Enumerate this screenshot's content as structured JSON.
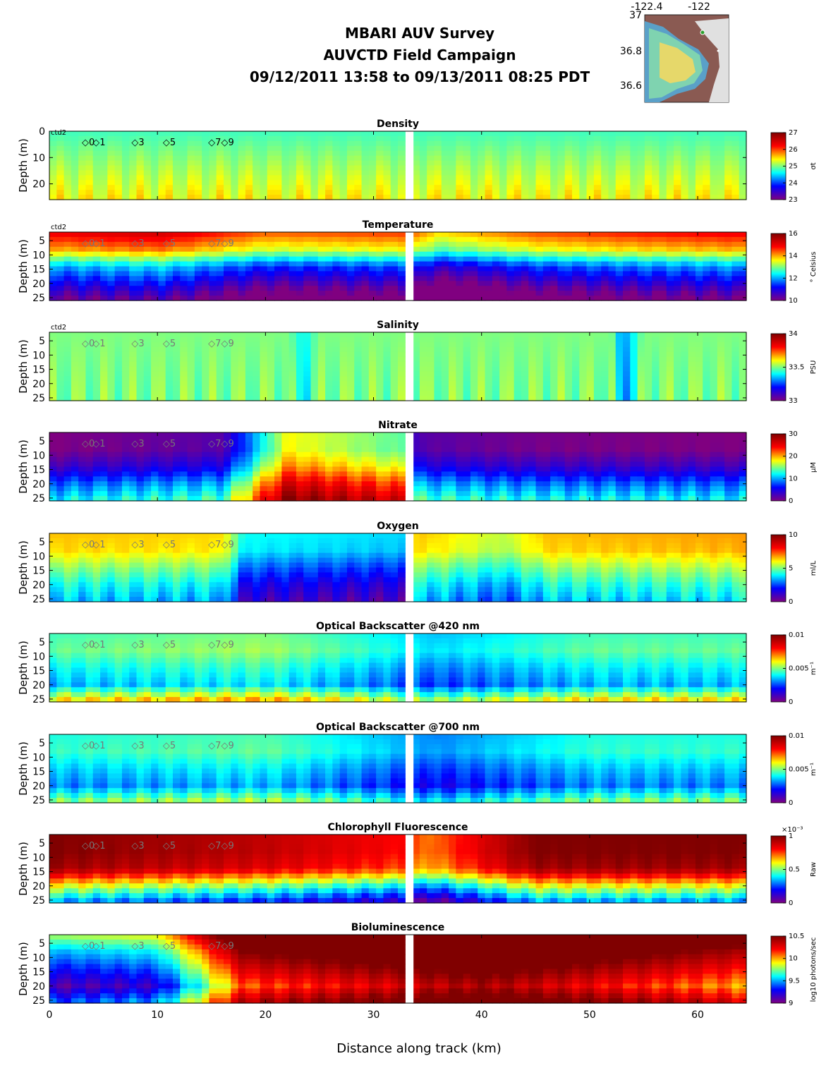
{
  "header": {
    "title_line1": "MBARI AUV Survey",
    "title_line2": "AUVCTD Field Campaign",
    "title_line3": "09/12/2011 13:58  to 09/13/2011 08:25 PDT"
  },
  "map": {
    "lon_labels": [
      "-122.4",
      "-122"
    ],
    "lat_labels": [
      "37",
      "36.8",
      "36.6"
    ]
  },
  "platform_label": "ctd2",
  "markers": [
    "0",
    "1",
    "3",
    "5",
    "7",
    "9"
  ],
  "xaxis": {
    "label": "Distance along track (km)",
    "ticks": [
      "0",
      "10",
      "20",
      "30",
      "40",
      "50",
      "60"
    ]
  },
  "colors": {
    "colormap": [
      "#800080",
      "#0000ff",
      "#00ffff",
      "#ffff00",
      "#ff0000",
      "#800000"
    ]
  },
  "chart_data": [
    {
      "type": "heatmap",
      "title": "Density",
      "ylabel": "Depth (m)",
      "yticks": [
        "0",
        "10",
        "20"
      ],
      "ylim": [
        0,
        26
      ],
      "xlim": [
        0,
        64.5
      ],
      "cbar_ticks": [
        "23",
        "24",
        "25",
        "26",
        "27"
      ],
      "cbar_unit": "σt",
      "depth_profile": [
        24.8,
        25.0,
        25.2,
        25.4
      ],
      "along_track": [
        [
          0,
          0.0
        ],
        [
          20,
          0.0
        ],
        [
          33.2,
          0.0
        ],
        [
          40,
          0.0
        ],
        [
          64.5,
          0.0
        ]
      ]
    },
    {
      "type": "heatmap",
      "title": "Temperature",
      "ylabel": "Depth (m)",
      "yticks": [
        "5",
        "10",
        "15",
        "20",
        "25"
      ],
      "ylim": [
        2,
        26
      ],
      "xlim": [
        0,
        64.5
      ],
      "cbar_ticks": [
        "10",
        "12",
        "14",
        "16"
      ],
      "cbar_unit": "° Celsius",
      "depth_profile": [
        15.0,
        14.0,
        12.0,
        11.0,
        10.0
      ],
      "along_track": [
        [
          0,
          0.0
        ],
        [
          10,
          0.3
        ],
        [
          20,
          -0.6
        ],
        [
          33,
          -0.4
        ],
        [
          36,
          -1.2
        ],
        [
          45,
          -0.5
        ],
        [
          55,
          -0.2
        ],
        [
          64.5,
          0.0
        ]
      ]
    },
    {
      "type": "heatmap",
      "title": "Salinity",
      "ylabel": "Depth (m)",
      "yticks": [
        "5",
        "10",
        "15",
        "20",
        "25"
      ],
      "ylim": [
        2,
        26
      ],
      "xlim": [
        0,
        64.5
      ],
      "cbar_ticks": [
        "33",
        "33.5",
        "34"
      ],
      "cbar_unit": "PSU",
      "depth_profile": [
        33.5,
        33.5
      ],
      "along_track": [
        [
          0,
          0.0
        ],
        [
          22,
          0.0
        ],
        [
          23.5,
          -0.1
        ],
        [
          25,
          0.0
        ],
        [
          52,
          0.0
        ],
        [
          53,
          -0.2
        ],
        [
          55,
          0.0
        ],
        [
          64.5,
          0.0
        ]
      ]
    },
    {
      "type": "heatmap",
      "title": "Nitrate",
      "ylabel": "Depth (m)",
      "yticks": [
        "5",
        "10",
        "15",
        "20",
        "25"
      ],
      "ylim": [
        2,
        26
      ],
      "xlim": [
        0,
        64.5
      ],
      "cbar_ticks": [
        "0",
        "10",
        "20",
        "30"
      ],
      "cbar_unit": "μM",
      "depth_profile": [
        0.0,
        0.0,
        3.0,
        8.0,
        12.0
      ],
      "along_track": [
        [
          0,
          0.0
        ],
        [
          16,
          2.0
        ],
        [
          22,
          18.0
        ],
        [
          33,
          14.0
        ],
        [
          34,
          2.0
        ],
        [
          45,
          0.5
        ],
        [
          64.5,
          0.0
        ]
      ]
    },
    {
      "type": "heatmap",
      "title": "Oxygen",
      "ylabel": "Depth (m)",
      "yticks": [
        "5",
        "10",
        "15",
        "20",
        "25"
      ],
      "ylim": [
        2,
        26
      ],
      "xlim": [
        0,
        64.5
      ],
      "cbar_ticks": [
        "0",
        "5",
        "10"
      ],
      "cbar_unit": "ml/L",
      "depth_profile": [
        6.5,
        6.3,
        5.2,
        4.2,
        3.5
      ],
      "along_track": [
        [
          0,
          0.0
        ],
        [
          16,
          -0.2
        ],
        [
          18,
          -2.4
        ],
        [
          33,
          -2.8
        ],
        [
          34,
          0.0
        ],
        [
          42,
          -1.0
        ],
        [
          46,
          0.0
        ],
        [
          64.5,
          0.3
        ]
      ]
    },
    {
      "type": "heatmap",
      "title": "Optical Backscatter @420 nm",
      "ylabel": "Depth (m)",
      "yticks": [
        "5",
        "10",
        "15",
        "20",
        "25"
      ],
      "ylim": [
        2,
        26
      ],
      "xlim": [
        0,
        64.5
      ],
      "cbar_ticks": [
        "0",
        "0.005",
        "0.01"
      ],
      "cbar_unit": "m⁻¹",
      "depth_profile": [
        0.0045,
        0.0048,
        0.004,
        0.0034,
        0.0065
      ],
      "along_track": [
        [
          0,
          0.0
        ],
        [
          20,
          0.0005
        ],
        [
          36,
          -0.001
        ],
        [
          50,
          0.0
        ],
        [
          64.5,
          0.0
        ]
      ]
    },
    {
      "type": "heatmap",
      "title": "Optical Backscatter @700 nm",
      "ylabel": "Depth (m)",
      "yticks": [
        "5",
        "10",
        "15",
        "20",
        "25"
      ],
      "ylim": [
        2,
        26
      ],
      "xlim": [
        0,
        64.5
      ],
      "cbar_ticks": [
        "0",
        "0.005",
        "0.01"
      ],
      "cbar_unit": "m⁻¹",
      "depth_profile": [
        0.0042,
        0.0044,
        0.0036,
        0.003,
        0.0052
      ],
      "along_track": [
        [
          0,
          0.0
        ],
        [
          20,
          0.0004
        ],
        [
          36,
          -0.0012
        ],
        [
          50,
          0.0
        ],
        [
          64.5,
          0.0
        ]
      ]
    },
    {
      "type": "heatmap",
      "title": "Chlorophyll Fluorescence",
      "ylabel": "Depth (m)",
      "yticks": [
        "5",
        "10",
        "15",
        "20",
        "25"
      ],
      "ylim": [
        2,
        26
      ],
      "xlim": [
        0,
        64.5
      ],
      "cbar_ticks": [
        "0",
        "0.5",
        "1"
      ],
      "cbar_unit": "Raw",
      "cbar_exp": "×10⁻³",
      "depth_profile": [
        1.0,
        1.0,
        0.95,
        0.6,
        0.3
      ],
      "along_track": [
        [
          0,
          0.0
        ],
        [
          20,
          -0.1
        ],
        [
          33,
          -0.2
        ],
        [
          35,
          -0.3
        ],
        [
          45,
          0.0
        ],
        [
          64.5,
          0.0
        ]
      ]
    },
    {
      "type": "heatmap",
      "title": "Bioluminescence",
      "ylabel": "Depth (m)",
      "yticks": [
        "5",
        "10",
        "15",
        "20",
        "25"
      ],
      "ylim": [
        2,
        26
      ],
      "xlim": [
        0,
        64.5
      ],
      "cbar_ticks": [
        "9",
        "9.5",
        "10",
        "10.5"
      ],
      "cbar_unit": "log10 photons/sec",
      "depth_profile": [
        9.8,
        9.5,
        9.3,
        9.1,
        9.4
      ],
      "along_track": [
        [
          0,
          0.0
        ],
        [
          10,
          0.1
        ],
        [
          18,
          1.0
        ],
        [
          33,
          1.2
        ],
        [
          40,
          1.3
        ],
        [
          64.5,
          0.9
        ]
      ]
    }
  ]
}
